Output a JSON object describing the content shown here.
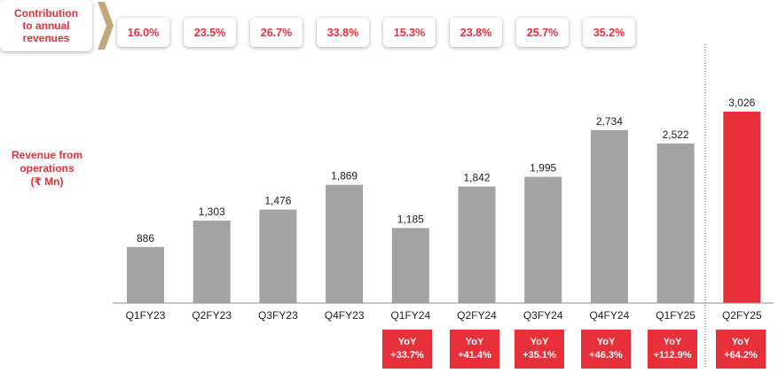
{
  "header": {
    "contribution_label": "Contribution\nto annual\nrevenues",
    "contributions": [
      "16.0%",
      "23.5%",
      "26.7%",
      "33.8%",
      "15.3%",
      "23.8%",
      "25.7%",
      "35.2%"
    ]
  },
  "side_label": "Revenue from\noperations\n(₹ Mn)",
  "colors": {
    "accent": "#e8303a",
    "bar": "#a3a3a3",
    "highlight_bar": "#e8303a",
    "chevron": "#c4a67a"
  },
  "chart_data": {
    "type": "bar",
    "categories": [
      "Q1FY23",
      "Q2FY23",
      "Q3FY23",
      "Q4FY23",
      "Q1FY24",
      "Q2FY24",
      "Q3FY24",
      "Q4FY24",
      "Q1FY25",
      "Q2FY25"
    ],
    "values": [
      886,
      1303,
      1476,
      1869,
      1185,
      1842,
      1995,
      2734,
      2522,
      3026
    ],
    "value_labels": [
      "886",
      "1,303",
      "1,476",
      "1,869",
      "1,185",
      "1,842",
      "1,995",
      "2,734",
      "2,522",
      "3,026"
    ],
    "highlight_category": "Q2FY25",
    "ylim": [
      0,
      3100
    ],
    "grid": false
  },
  "yoy": [
    {
      "title": "YoY",
      "value": "+33.7%"
    },
    {
      "title": "YoY",
      "value": "+41.4%"
    },
    {
      "title": "YoY",
      "value": "+35.1%"
    },
    {
      "title": "YoY",
      "value": "+46.3%"
    },
    {
      "title": "YoY",
      "value": "+112.9%"
    },
    {
      "title": "YoY",
      "value": "+64.2%"
    }
  ]
}
